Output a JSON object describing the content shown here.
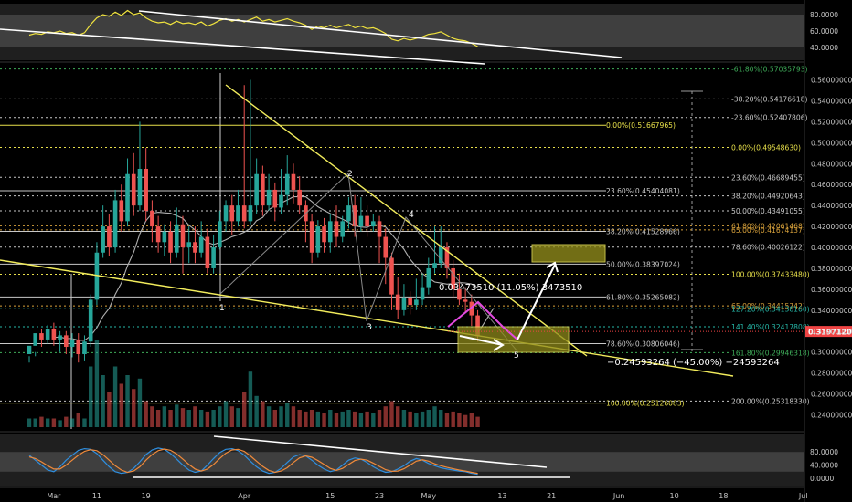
{
  "colors": {
    "background": "#000000",
    "bull": "#26a69a",
    "bear": "#ef5350",
    "white": "#ffffff",
    "fib_gray": "#c8c8c8",
    "fib_yellow": "#e8e04a",
    "fib_orange": "#d9a23b",
    "fib_green": "#3fae5a",
    "fib_teal": "#26b7a8",
    "channel": "#f2ec5c",
    "magenta": "#e34ae0",
    "zone": "#8f8a1b",
    "ma": "#b0b0b0",
    "rsi_line": "#f0e33e",
    "stoch_k": "#2f8fe0",
    "stoch_d": "#f08a3a",
    "price_badge": "#ef4444"
  },
  "chart_data": {
    "type": "candlestick",
    "main_axis": {
      "ylim": [
        0.235,
        0.575
      ],
      "ticks": [
        "0.56000000",
        "0.54000000",
        "0.52000000",
        "0.50000000",
        "0.48000000",
        "0.46000000",
        "0.44000000",
        "0.42000000",
        "0.40000000",
        "0.38000000",
        "0.36000000",
        "0.34000000",
        "0.32000000",
        "0.30000000",
        "0.28000000",
        "0.26000000",
        "0.24000000"
      ]
    },
    "x_axis": {
      "start_date": "Feb 26",
      "labels": [
        {
          "text": "Mar",
          "day": 4
        },
        {
          "text": "11",
          "day": 11
        },
        {
          "text": "19",
          "day": 19
        },
        {
          "text": "Apr",
          "day": 35
        },
        {
          "text": "15",
          "day": 49
        },
        {
          "text": "23",
          "day": 57
        },
        {
          "text": "May",
          "day": 65
        },
        {
          "text": "13",
          "day": 77
        },
        {
          "text": "21",
          "day": 85
        },
        {
          "text": "Jun",
          "day": 96
        },
        {
          "text": "10",
          "day": 105
        },
        {
          "text": "18",
          "day": 113
        },
        {
          "text": "Jul",
          "day": 126
        }
      ]
    },
    "current_price": "0.31971200",
    "candles": [
      [
        0.298,
        0.306,
        0.296,
        0.29
      ],
      [
        0.306,
        0.318,
        0.3,
        0.296
      ],
      [
        0.318,
        0.312,
        0.322,
        0.305
      ],
      [
        0.312,
        0.322,
        0.326,
        0.308
      ],
      [
        0.322,
        0.312,
        0.328,
        0.306
      ],
      [
        0.312,
        0.316,
        0.32,
        0.3
      ],
      [
        0.316,
        0.305,
        0.32,
        0.298
      ],
      [
        0.305,
        0.312,
        0.318,
        0.295
      ],
      [
        0.312,
        0.298,
        0.318,
        0.29
      ],
      [
        0.298,
        0.31,
        0.316,
        0.292
      ],
      [
        0.31,
        0.35,
        0.355,
        0.305
      ],
      [
        0.35,
        0.395,
        0.405,
        0.345
      ],
      [
        0.395,
        0.42,
        0.44,
        0.39
      ],
      [
        0.42,
        0.4,
        0.432,
        0.392
      ],
      [
        0.4,
        0.445,
        0.455,
        0.395
      ],
      [
        0.445,
        0.425,
        0.46,
        0.415
      ],
      [
        0.425,
        0.47,
        0.485,
        0.42
      ],
      [
        0.47,
        0.44,
        0.49,
        0.43
      ],
      [
        0.44,
        0.475,
        0.52,
        0.435
      ],
      [
        0.475,
        0.435,
        0.495,
        0.425
      ],
      [
        0.435,
        0.42,
        0.445,
        0.405
      ],
      [
        0.42,
        0.405,
        0.43,
        0.395
      ],
      [
        0.405,
        0.415,
        0.422,
        0.392
      ],
      [
        0.415,
        0.395,
        0.425,
        0.385
      ],
      [
        0.395,
        0.422,
        0.438,
        0.39
      ],
      [
        0.422,
        0.4,
        0.43,
        0.375
      ],
      [
        0.4,
        0.405,
        0.42,
        0.385
      ],
      [
        0.405,
        0.395,
        0.42,
        0.385
      ],
      [
        0.395,
        0.41,
        0.425,
        0.39
      ],
      [
        0.41,
        0.38,
        0.418,
        0.375
      ],
      [
        0.38,
        0.4,
        0.412,
        0.375
      ],
      [
        0.4,
        0.425,
        0.435,
        0.398
      ],
      [
        0.425,
        0.44,
        0.445,
        0.415
      ],
      [
        0.44,
        0.425,
        0.45,
        0.412
      ],
      [
        0.425,
        0.44,
        0.455,
        0.42
      ],
      [
        0.44,
        0.425,
        0.555,
        0.418
      ],
      [
        0.425,
        0.44,
        0.56,
        0.422
      ],
      [
        0.44,
        0.47,
        0.485,
        0.432
      ],
      [
        0.47,
        0.44,
        0.478,
        0.43
      ],
      [
        0.44,
        0.455,
        0.47,
        0.435
      ],
      [
        0.455,
        0.438,
        0.462,
        0.425
      ],
      [
        0.438,
        0.45,
        0.475,
        0.432
      ],
      [
        0.45,
        0.47,
        0.488,
        0.44
      ],
      [
        0.47,
        0.455,
        0.48,
        0.442
      ],
      [
        0.455,
        0.44,
        0.468,
        0.432
      ],
      [
        0.44,
        0.425,
        0.445,
        0.405
      ],
      [
        0.425,
        0.395,
        0.432,
        0.385
      ],
      [
        0.395,
        0.42,
        0.426,
        0.39
      ],
      [
        0.42,
        0.405,
        0.428,
        0.395
      ],
      [
        0.405,
        0.425,
        0.432,
        0.395
      ],
      [
        0.425,
        0.41,
        0.44,
        0.4
      ],
      [
        0.41,
        0.425,
        0.43,
        0.405
      ],
      [
        0.425,
        0.44,
        0.448,
        0.418
      ],
      [
        0.44,
        0.42,
        0.45,
        0.41
      ],
      [
        0.42,
        0.43,
        0.448,
        0.415
      ],
      [
        0.43,
        0.42,
        0.44,
        0.41
      ],
      [
        0.42,
        0.425,
        0.432,
        0.415
      ],
      [
        0.425,
        0.41,
        0.43,
        0.385
      ],
      [
        0.41,
        0.39,
        0.418,
        0.365
      ],
      [
        0.39,
        0.355,
        0.395,
        0.34
      ],
      [
        0.355,
        0.34,
        0.372,
        0.332
      ],
      [
        0.34,
        0.352,
        0.365,
        0.335
      ],
      [
        0.352,
        0.345,
        0.358,
        0.336
      ],
      [
        0.345,
        0.35,
        0.37,
        0.34
      ],
      [
        0.35,
        0.362,
        0.375,
        0.345
      ],
      [
        0.362,
        0.38,
        0.39,
        0.355
      ],
      [
        0.38,
        0.385,
        0.42,
        0.375
      ],
      [
        0.385,
        0.4,
        0.42,
        0.38
      ],
      [
        0.4,
        0.38,
        0.405,
        0.37
      ],
      [
        0.38,
        0.36,
        0.388,
        0.352
      ],
      [
        0.36,
        0.35,
        0.375,
        0.345
      ],
      [
        0.35,
        0.348,
        0.362,
        0.338
      ],
      [
        0.348,
        0.335,
        0.355,
        0.325
      ],
      [
        0.335,
        0.315,
        0.34,
        0.31
      ]
    ],
    "volume": [
      0.05,
      0.05,
      0.06,
      0.05,
      0.05,
      0.04,
      0.06,
      0.05,
      0.08,
      0.05,
      0.35,
      0.5,
      0.3,
      0.2,
      0.35,
      0.25,
      0.3,
      0.22,
      0.28,
      0.15,
      0.12,
      0.1,
      0.12,
      0.1,
      0.13,
      0.11,
      0.1,
      0.12,
      0.1,
      0.09,
      0.1,
      0.12,
      0.15,
      0.12,
      0.11,
      0.2,
      0.32,
      0.18,
      0.15,
      0.12,
      0.1,
      0.12,
      0.14,
      0.12,
      0.1,
      0.09,
      0.1,
      0.09,
      0.08,
      0.1,
      0.08,
      0.09,
      0.1,
      0.09,
      0.08,
      0.09,
      0.08,
      0.1,
      0.12,
      0.15,
      0.12,
      0.1,
      0.09,
      0.08,
      0.09,
      0.1,
      0.12,
      0.1,
      0.08,
      0.09,
      0.08,
      0.07,
      0.08,
      0.06
    ],
    "fib_levels_left": [
      {
        "text": "0.00%(0.51667965)",
        "price": 0.51668,
        "color": "fib_yellow",
        "dashed": false
      },
      {
        "text": "23.60%(0.45404081)",
        "price": 0.45404,
        "color": "fib_gray",
        "dashed": false
      },
      {
        "text": "38.20%(0.41528966)",
        "price": 0.41529,
        "color": "fib_gray",
        "dashed": false
      },
      {
        "text": "50.00%(0.38397024)",
        "price": 0.38397,
        "color": "fib_gray",
        "dashed": false
      },
      {
        "text": "61.80%(0.35265082)",
        "price": 0.35265,
        "color": "fib_gray",
        "dashed": false
      },
      {
        "text": "78.60%(0.30806046)",
        "price": 0.30806,
        "color": "fib_gray",
        "dashed": false
      },
      {
        "text": "100.00%(0.25126083)",
        "price": 0.25126,
        "color": "fib_yellow",
        "dashed": false
      }
    ],
    "fib_levels_right": [
      {
        "text": "-61.80%(0.57035793)",
        "price": 0.57036,
        "color": "fib_green",
        "dashed": true
      },
      {
        "text": "-38.20%(0.54176618)",
        "price": 0.54177,
        "color": "fib_gray",
        "dashed": true
      },
      {
        "text": "-23.60%(0.52407806)",
        "price": 0.52408,
        "color": "fib_gray",
        "dashed": true
      },
      {
        "text": "0.00%(0.49548630)",
        "price": 0.49549,
        "color": "fib_yellow",
        "dashed": true
      },
      {
        "text": "23.60%(0.46689455)",
        "price": 0.46689,
        "color": "fib_gray",
        "dashed": true
      },
      {
        "text": "38.20%(0.44920643)",
        "price": 0.44921,
        "color": "fib_gray",
        "dashed": true
      },
      {
        "text": "50.00%(0.43491055)",
        "price": 0.43491,
        "color": "fib_gray",
        "dashed": true
      },
      {
        "text": "61.80%(0.42061468)",
        "price": 0.42061,
        "color": "fib_orange",
        "dashed": true
      },
      {
        "text": "65.00%(0.41674137)",
        "price": 0.41674,
        "color": "fib_orange",
        "dashed": true
      },
      {
        "text": "78.60%(0.40026122)",
        "price": 0.40026,
        "color": "fib_gray",
        "dashed": true
      },
      {
        "text": "100.00%(0.37433480)",
        "price": 0.37433,
        "color": "fib_yellow",
        "dashed": true
      },
      {
        "text": "65.00%(0.34415742)",
        "price": 0.34416,
        "color": "fib_orange",
        "dashed": true
      },
      {
        "text": "127.20%(0.34138160)",
        "price": 0.34138,
        "color": "fib_teal",
        "dashed": true
      },
      {
        "text": "141.40%(0.32417808)",
        "price": 0.32418,
        "color": "fib_teal",
        "dashed": true
      },
      {
        "text": "161.80%(0.29946318)",
        "price": 0.29946,
        "color": "fib_green",
        "dashed": true
      },
      {
        "text": "200.00%(0.25318330)",
        "price": 0.25318,
        "color": "fib_gray",
        "dashed": true
      }
    ],
    "measure_labels": [
      "0.03473510 (11.05%) 3473510",
      "−0.24593264 (−45.00%) −24593264"
    ],
    "wave_labels": [
      "1",
      "2",
      "3",
      "4",
      "5"
    ],
    "rsi": {
      "ticks": [
        "80.0000",
        "60.0000",
        "40.0000"
      ],
      "ylim": [
        30,
        90
      ],
      "values": [
        55,
        57,
        56,
        59,
        58,
        60,
        57,
        58,
        55,
        58,
        68,
        76,
        80,
        78,
        83,
        79,
        85,
        80,
        82,
        76,
        72,
        70,
        71,
        68,
        72,
        69,
        70,
        68,
        71,
        66,
        69,
        73,
        75,
        72,
        74,
        71,
        74,
        77,
        72,
        74,
        71,
        73,
        75,
        72,
        70,
        67,
        62,
        66,
        64,
        67,
        64,
        66,
        68,
        64,
        66,
        63,
        64,
        61,
        57,
        50,
        48,
        51,
        49,
        51,
        53,
        56,
        57,
        59,
        55,
        51,
        49,
        48,
        45,
        41
      ]
    },
    "stoch": {
      "ticks": [
        "80.0000",
        "40.0000",
        "0.0000"
      ],
      "ylim": [
        -5,
        100
      ],
      "k": [
        70,
        55,
        40,
        25,
        20,
        35,
        55,
        70,
        85,
        90,
        88,
        75,
        55,
        35,
        20,
        15,
        18,
        30,
        50,
        72,
        86,
        92,
        88,
        75,
        58,
        40,
        25,
        18,
        22,
        40,
        60,
        78,
        88,
        90,
        84,
        70,
        52,
        35,
        22,
        15,
        18,
        30,
        48,
        65,
        72,
        68,
        55,
        40,
        28,
        20,
        25,
        40,
        55,
        62,
        58,
        48,
        35,
        25,
        18,
        20,
        28,
        38,
        52,
        60,
        55,
        45,
        38,
        32,
        28,
        25,
        22,
        20,
        15,
        12
      ],
      "d": [
        65,
        60,
        50,
        38,
        28,
        28,
        40,
        55,
        70,
        82,
        87,
        84,
        72,
        55,
        38,
        25,
        18,
        22,
        35,
        55,
        72,
        84,
        89,
        85,
        74,
        58,
        42,
        28,
        22,
        28,
        42,
        60,
        76,
        86,
        88,
        82,
        68,
        52,
        36,
        24,
        18,
        22,
        32,
        48,
        62,
        68,
        64,
        54,
        42,
        30,
        24,
        30,
        42,
        54,
        58,
        55,
        46,
        36,
        26,
        21,
        22,
        29,
        40,
        52,
        56,
        52,
        44,
        38,
        33,
        29,
        25,
        22,
        18,
        15
      ]
    }
  }
}
